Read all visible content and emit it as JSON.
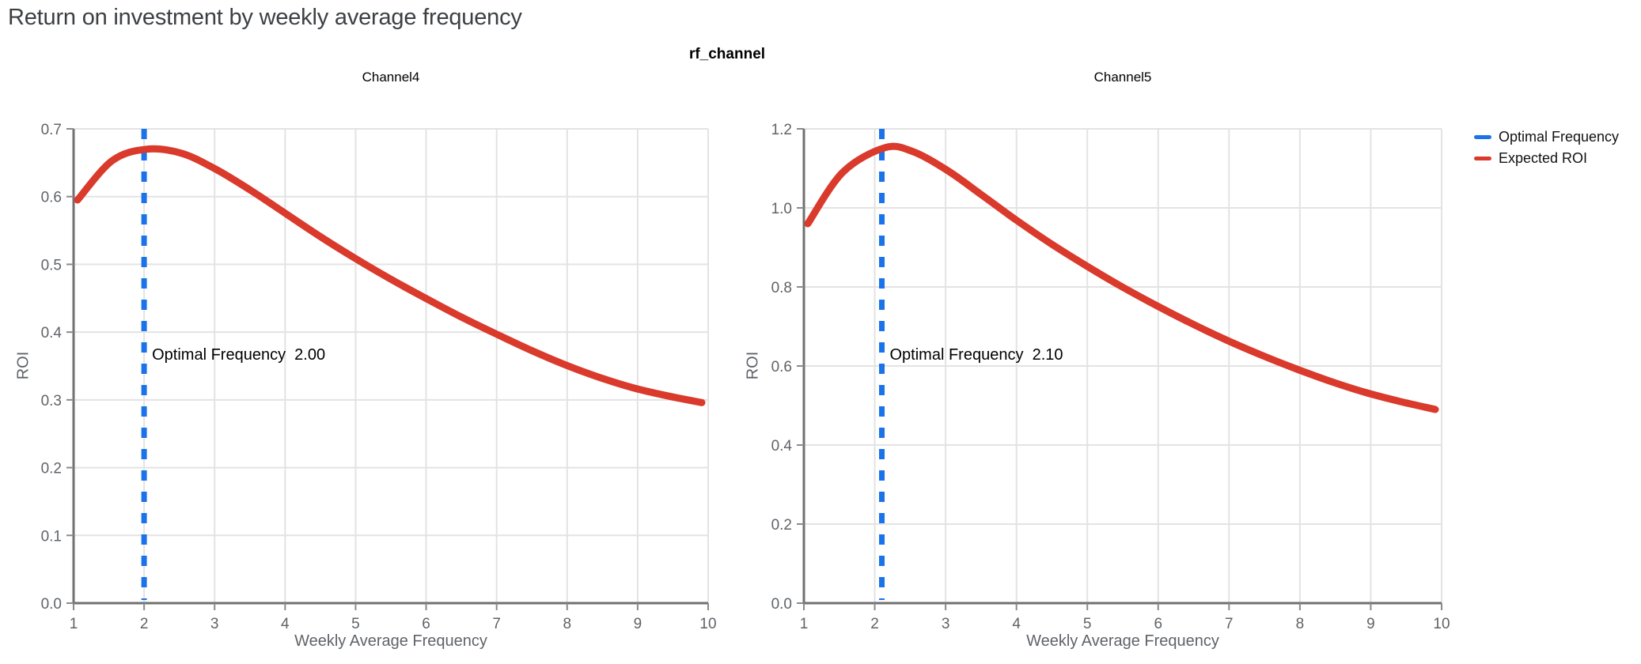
{
  "page_title": "Return on investment by weekly average frequency",
  "facet_title": "rf_channel",
  "colors": {
    "expected_roi": "#d93a2b",
    "optimal_frequency": "#1a73e8",
    "title_text": "#3c4043",
    "axis_text": "#5f6368",
    "grid": "#e3e3e3",
    "axis_line": "#707070",
    "tick": "#8a8a8a",
    "annotation_text": "#000000",
    "background": "#ffffff"
  },
  "legend": {
    "position": "right",
    "items": [
      {
        "label": "Optimal Frequency",
        "color": "#1a73e8"
      },
      {
        "label": "Expected ROI",
        "color": "#d93a2b"
      }
    ]
  },
  "chart_data": [
    {
      "type": "line",
      "title": "Channel4",
      "xlabel": "Weekly Average Frequency",
      "ylabel": "ROI",
      "xlim": [
        1,
        10
      ],
      "ylim": [
        0.0,
        0.7
      ],
      "xticks": [
        1,
        2,
        3,
        4,
        5,
        6,
        7,
        8,
        9,
        10
      ],
      "yticks": [
        0.0,
        0.1,
        0.2,
        0.3,
        0.4,
        0.5,
        0.6,
        0.7
      ],
      "grid": true,
      "optimal_frequency": 2.0,
      "annotation": {
        "label": "Optimal Frequency",
        "value": "2.00"
      },
      "series": [
        {
          "name": "Expected ROI",
          "x": [
            1,
            1.5,
            2,
            2.5,
            3,
            3.5,
            4,
            4.5,
            5,
            5.5,
            6,
            6.5,
            7,
            7.5,
            8,
            8.5,
            9,
            9.5,
            10
          ],
          "y": [
            0.595,
            0.653,
            0.67,
            0.664,
            0.64,
            0.609,
            0.575,
            0.541,
            0.509,
            0.479,
            0.451,
            0.424,
            0.399,
            0.375,
            0.353,
            0.334,
            0.318,
            0.306,
            0.296
          ]
        }
      ]
    },
    {
      "type": "line",
      "title": "Channel5",
      "xlabel": "Weekly Average Frequency",
      "ylabel": "ROI",
      "xlim": [
        1,
        10
      ],
      "ylim": [
        0.0,
        1.2
      ],
      "xticks": [
        1,
        2,
        3,
        4,
        5,
        6,
        7,
        8,
        9,
        10
      ],
      "yticks": [
        0.0,
        0.2,
        0.4,
        0.6,
        0.8,
        1.0,
        1.2
      ],
      "grid": true,
      "optimal_frequency": 2.1,
      "annotation": {
        "label": "Optimal Frequency",
        "value": "2.10"
      },
      "series": [
        {
          "name": "Expected ROI",
          "x": [
            1,
            1.5,
            2.1,
            2.5,
            3,
            3.5,
            4,
            4.5,
            5,
            5.5,
            6,
            6.5,
            7,
            7.5,
            8,
            8.5,
            9,
            9.5,
            10
          ],
          "y": [
            0.96,
            1.09,
            1.152,
            1.143,
            1.095,
            1.032,
            0.968,
            0.908,
            0.853,
            0.801,
            0.753,
            0.708,
            0.666,
            0.628,
            0.593,
            0.561,
            0.533,
            0.51,
            0.49
          ]
        }
      ]
    }
  ]
}
